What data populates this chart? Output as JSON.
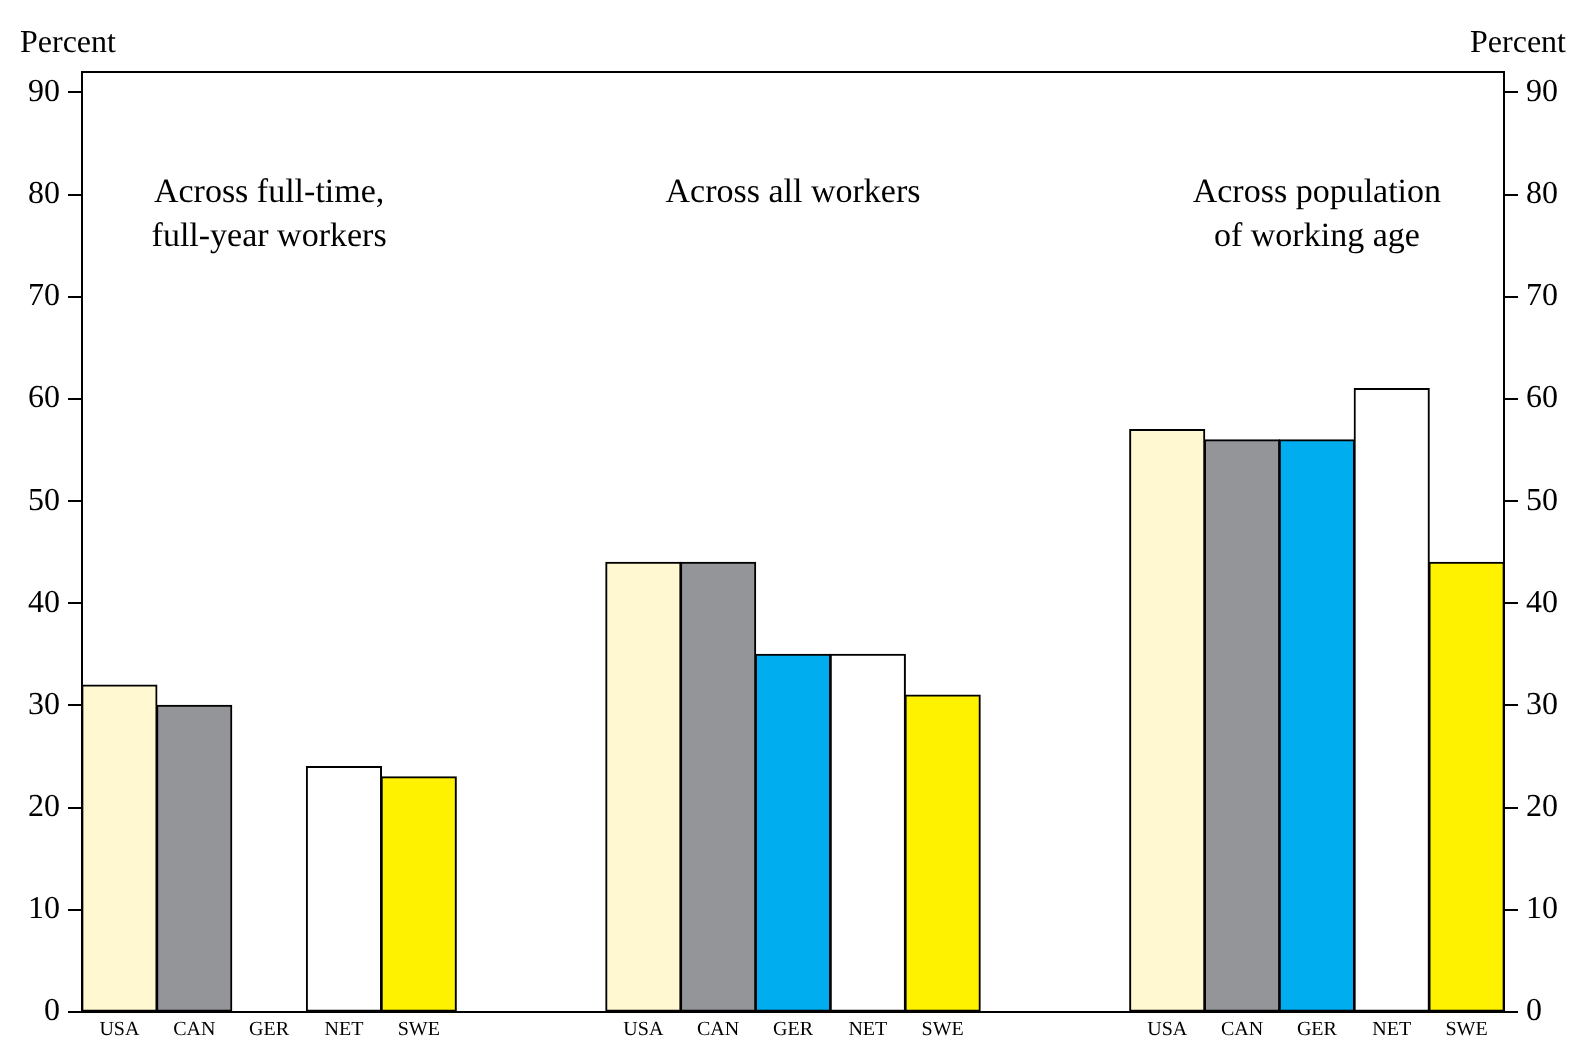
{
  "chart_data": {
    "type": "bar",
    "categories": [
      "USA",
      "CAN",
      "GER",
      "NET",
      "SWE",
      null,
      null,
      "USA",
      "CAN",
      "GER",
      "NET",
      "SWE",
      null,
      null,
      "USA",
      "CAN",
      "GER",
      "NET",
      "SWE"
    ],
    "values": [
      32,
      30,
      null,
      24,
      23,
      null,
      null,
      44,
      44,
      35,
      35,
      31,
      null,
      null,
      57,
      56,
      56,
      61,
      44
    ],
    "colors": [
      "#fff8d0",
      "#939598",
      "#00aeef",
      "#ffffff",
      "#fff200",
      null,
      null,
      "#fff8d0",
      "#939598",
      "#00aeef",
      "#ffffff",
      "#fff200",
      null,
      null,
      "#fff8d0",
      "#939598",
      "#00aeef",
      "#ffffff",
      "#fff200"
    ],
    "ylabel": "Percent",
    "y2label": "Percent",
    "ylim": [
      0,
      92
    ],
    "yticks": [
      0,
      10,
      20,
      30,
      40,
      50,
      60,
      70,
      80,
      90
    ],
    "y2lim": [
      0,
      92
    ],
    "y2ticks": [
      0,
      10,
      20,
      30,
      40,
      50,
      60,
      70,
      80,
      90
    ],
    "annotations": [
      "Across full-time,\nfull-year workers",
      "Across all workers",
      "Across population\nof working age"
    ],
    "grid": false,
    "legend": false
  }
}
